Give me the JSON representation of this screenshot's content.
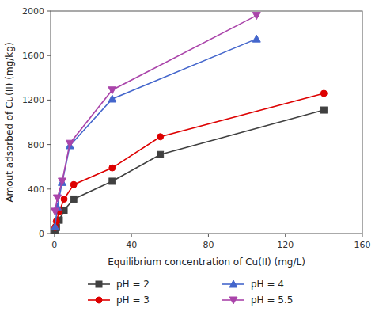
{
  "chart_data": {
    "type": "line",
    "xlabel": "Equilibrium concentration of Cu(II) (mg/L)",
    "ylabel": "Amout adsorbed of Cu(II) (mg/kg)",
    "series": [
      {
        "name": "pH = 2",
        "color": "#404040",
        "marker": "square",
        "x": [
          0.3,
          1.0,
          2.5,
          5.0,
          10.0,
          30.0,
          55.0,
          140.0
        ],
        "values": [
          20,
          55,
          120,
          210,
          310,
          470,
          710,
          1110
        ]
      },
      {
        "name": "pH = 3",
        "color": "#dd0000",
        "marker": "circle",
        "x": [
          0.3,
          1.0,
          2.5,
          5.0,
          10.0,
          30.0,
          55.0,
          140.0
        ],
        "values": [
          55,
          110,
          200,
          310,
          440,
          590,
          870,
          1260
        ]
      },
      {
        "name": "pH = 4",
        "color": "#4466cc",
        "marker": "triangle-up",
        "x": [
          0.3,
          1.5,
          4.0,
          8.0,
          30.0,
          105.0
        ],
        "values": [
          60,
          240,
          460,
          790,
          1210,
          1750
        ]
      },
      {
        "name": "pH = 5.5",
        "color": "#aa44aa",
        "marker": "triangle-down",
        "x": [
          0.3,
          1.5,
          4.0,
          8.0,
          30.0,
          105.0
        ],
        "values": [
          200,
          320,
          470,
          810,
          1290,
          1960
        ]
      }
    ],
    "xlim": [
      -2,
      160
    ],
    "ylim": [
      0,
      2000
    ],
    "xticks": [
      0,
      40,
      80,
      120,
      160
    ],
    "yticks": [
      0,
      400,
      800,
      1200,
      1600,
      2000
    ],
    "legend": "bottom"
  }
}
